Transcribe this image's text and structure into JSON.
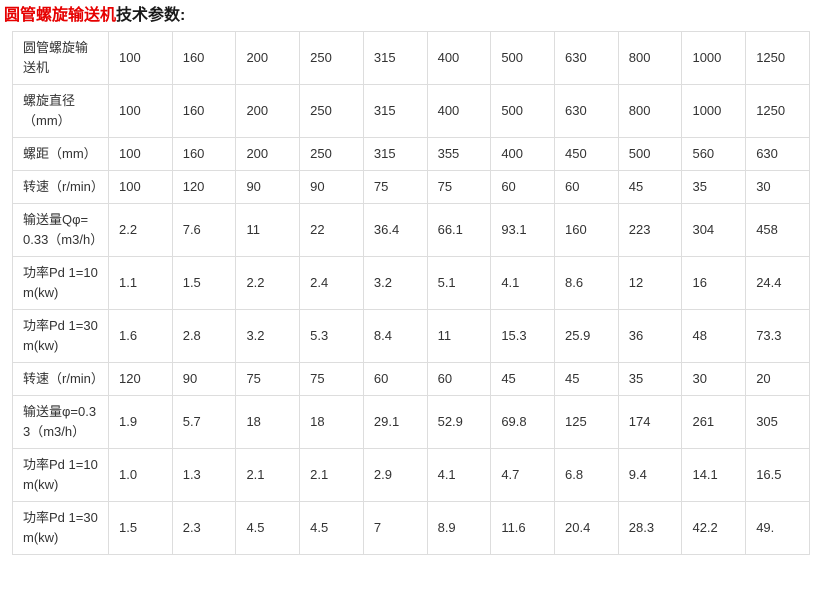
{
  "page": {
    "title_red": "圆管螺旋输送机",
    "title_black": "技术参数:"
  },
  "colors": {
    "title_red": "#e60000",
    "border": "#dddddd",
    "text": "#333333",
    "background": "#ffffff"
  },
  "table": {
    "rows": [
      {
        "label": "圆管螺旋输送机",
        "values": [
          "100",
          "160",
          "200",
          "250",
          "315",
          "400",
          "500",
          "630",
          "800",
          "1000",
          "1250"
        ]
      },
      {
        "label": "螺旋直径（mm）",
        "values": [
          "100",
          "160",
          "200",
          "250",
          "315",
          "400",
          "500",
          "630",
          "800",
          "1000",
          "1250"
        ]
      },
      {
        "label": "螺距（mm）",
        "values": [
          "100",
          "160",
          "200",
          "250",
          "315",
          "355",
          "400",
          "450",
          "500",
          "560",
          "630"
        ]
      },
      {
        "label": "转速（r/min）",
        "values": [
          "100",
          "120",
          "90",
          "90",
          "75",
          "75",
          "60",
          "60",
          "45",
          "35",
          "30"
        ]
      },
      {
        "label": "输送量Qφ=0.33（m3/h）",
        "values": [
          "2.2",
          "7.6",
          "11",
          "22",
          "36.4",
          "66.1",
          "93.1",
          "160",
          "223",
          "304",
          "458"
        ]
      },
      {
        "label": "功率Pd 1=10 m(kw)",
        "values": [
          "1.1",
          "1.5",
          "2.2",
          "2.4",
          "3.2",
          "5.1",
          "4.1",
          "8.6",
          "12",
          "16",
          "24.4"
        ]
      },
      {
        "label": "功率Pd 1=30 m(kw)",
        "values": [
          "1.6",
          "2.8",
          "3.2",
          "5.3",
          "8.4",
          "11",
          "15.3",
          "25.9",
          "36",
          "48",
          "73.3"
        ]
      },
      {
        "label": "转速（r/min）",
        "values": [
          "120",
          "90",
          "75",
          "75",
          "60",
          "60",
          "45",
          "45",
          "35",
          "30",
          "20"
        ]
      },
      {
        "label": "输送量φ=0.33（m3/h）",
        "values": [
          "1.9",
          "5.7",
          "18",
          "18",
          "29.1",
          "52.9",
          "69.8",
          "125",
          "174",
          "261",
          "305"
        ]
      },
      {
        "label": "功率Pd 1=10 m(kw)",
        "values": [
          "1.0",
          "1.3",
          "2.1",
          "2.1",
          "2.9",
          "4.1",
          "4.7",
          "6.8",
          "9.4",
          "14.1",
          "16.5"
        ]
      },
      {
        "label": "功率Pd 1=30 m(kw)",
        "values": [
          "1.5",
          "2.3",
          "4.5",
          "4.5",
          "7",
          "8.9",
          "11.6",
          "20.4",
          "28.3",
          "42.2",
          "49."
        ]
      }
    ]
  }
}
